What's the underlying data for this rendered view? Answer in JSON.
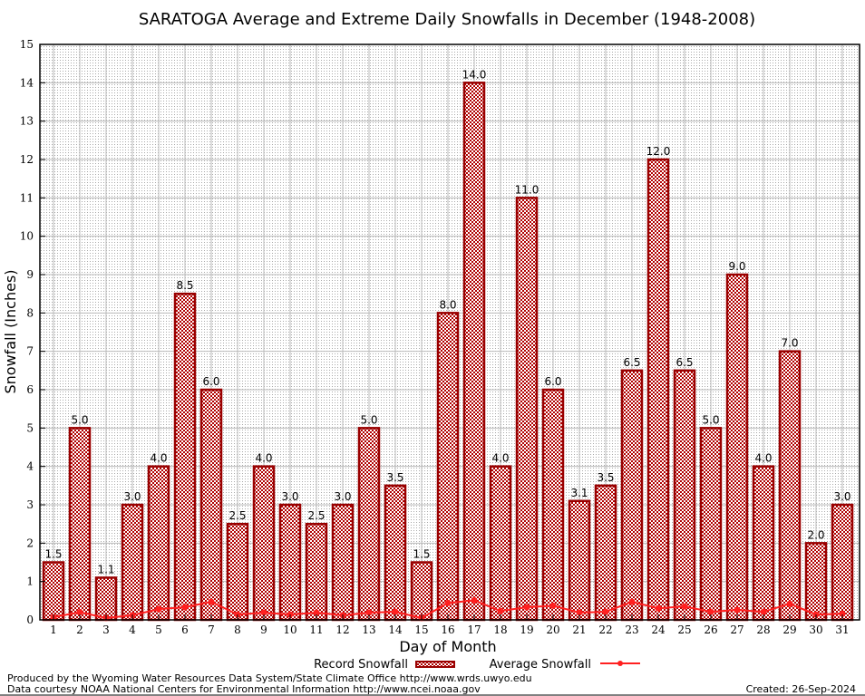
{
  "chart_data": {
    "type": "bar",
    "title": "SARATOGA Average and Extreme Daily Snowfalls in December (1948-2008)",
    "xlabel": "Day of Month",
    "ylabel": "Snowfall (Inches)",
    "ylim": [
      0,
      15
    ],
    "yticks": [
      "0",
      "1",
      "2",
      "3",
      "4",
      "5",
      "6",
      "7",
      "8",
      "9",
      "10",
      "11",
      "12",
      "13",
      "14",
      "15"
    ],
    "categories": [
      "1",
      "2",
      "3",
      "4",
      "5",
      "6",
      "7",
      "8",
      "9",
      "10",
      "11",
      "12",
      "13",
      "14",
      "15",
      "16",
      "17",
      "18",
      "19",
      "20",
      "21",
      "22",
      "23",
      "24",
      "25",
      "26",
      "27",
      "28",
      "29",
      "30",
      "31"
    ],
    "series": [
      {
        "name": "Record Snowfall",
        "type": "bar",
        "color": "#990000",
        "values": [
          1.5,
          5.0,
          1.1,
          3.0,
          4.0,
          8.5,
          6.0,
          2.5,
          4.0,
          3.0,
          2.5,
          3.0,
          5.0,
          3.5,
          1.5,
          8.0,
          14.0,
          4.0,
          11.0,
          6.0,
          3.1,
          3.5,
          6.5,
          12.0,
          6.5,
          5.0,
          9.0,
          4.0,
          7.0,
          2.0,
          3.0
        ],
        "labels": [
          "1.5",
          "5.0",
          "1.1",
          "3.0",
          "4.0",
          "8.5",
          "6.0",
          "2.5",
          "4.0",
          "3.0",
          "2.5",
          "3.0",
          "5.0",
          "3.5",
          "1.5",
          "8.0",
          "14.0",
          "4.0",
          "11.0",
          "6.0",
          "3.1",
          "3.5",
          "6.5",
          "12.0",
          "6.5",
          "5.0",
          "9.0",
          "4.0",
          "7.0",
          "2.0",
          "3.0"
        ]
      },
      {
        "name": "Average Snowfall",
        "type": "line",
        "color": "#ff2020",
        "values": [
          0.07,
          0.2,
          0.05,
          0.12,
          0.28,
          0.33,
          0.47,
          0.14,
          0.19,
          0.14,
          0.19,
          0.12,
          0.19,
          0.21,
          0.05,
          0.44,
          0.51,
          0.23,
          0.33,
          0.37,
          0.19,
          0.21,
          0.47,
          0.3,
          0.35,
          0.21,
          0.26,
          0.21,
          0.42,
          0.14,
          0.16
        ]
      }
    ],
    "legend": "bottom-center",
    "grid": true
  },
  "footer": {
    "line1": "Produced by the Wyoming Water Resources Data System/State Climate Office http://www.wrds.uwyo.edu",
    "line2": "Data courtesy NOAA National Centers for Environmental Information http://www.ncei.noaa.gov",
    "created": "Created: 26-Sep-2024"
  }
}
